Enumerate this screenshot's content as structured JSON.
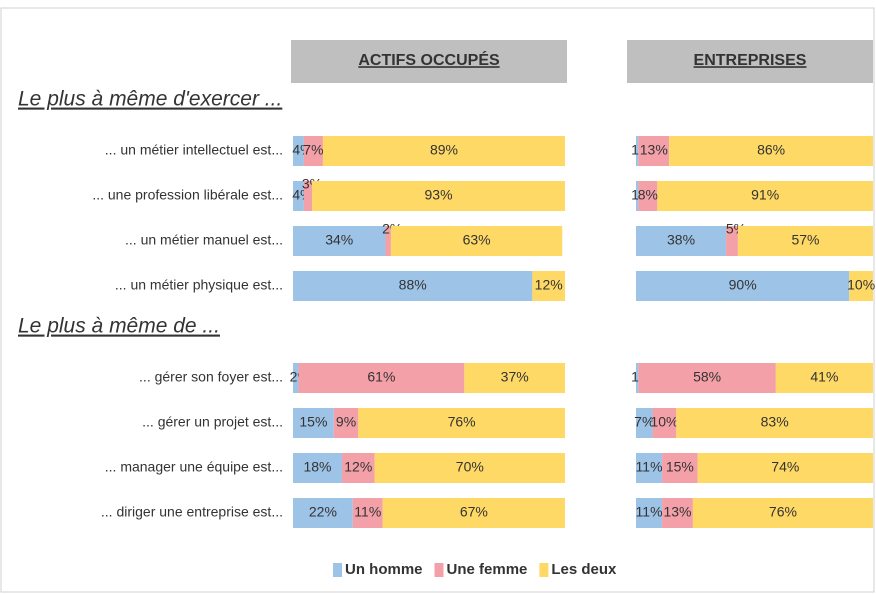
{
  "chart_data": [
    {
      "type": "bar",
      "orientation": "horizontal",
      "stacked": true,
      "title": "ACTIFS OCCUPÉS",
      "xlim": [
        0,
        100
      ],
      "groups": [
        {
          "label": "Le plus à même d'exercer ...",
          "categories": [
            "... un métier intellectuel est...",
            "... une profession libérale est...",
            "... un métier manuel est...",
            "... un métier physique est..."
          ]
        },
        {
          "label": "Le plus à même de ...",
          "categories": [
            "... gérer son foyer est...",
            "... gérer un projet est...",
            "... manager une équipe est...",
            "... diriger une entreprise est..."
          ]
        }
      ],
      "series": [
        {
          "name": "Un homme",
          "color": "#9dc3e6",
          "values": [
            4,
            4,
            34,
            88,
            2,
            15,
            18,
            22
          ],
          "value_labels": [
            "4%",
            "4%",
            "34%",
            "88%",
            "2%",
            "15%",
            "18%",
            "22%"
          ]
        },
        {
          "name": "Une femme",
          "color": "#f4a0a8",
          "values": [
            7,
            3,
            2,
            null,
            61,
            9,
            12,
            11
          ],
          "value_labels": [
            "7%",
            "3%",
            "2%",
            null,
            "61%",
            "9%",
            "12%",
            "11%"
          ]
        },
        {
          "name": "Les deux",
          "color": "#ffd966",
          "values": [
            89,
            93,
            63,
            12,
            37,
            76,
            70,
            67
          ],
          "value_labels": [
            "89%",
            "93%",
            "63%",
            "12%",
            "37%",
            "76%",
            "70%",
            "67%"
          ]
        }
      ]
    },
    {
      "type": "bar",
      "orientation": "horizontal",
      "stacked": true,
      "title": "ENTREPRISES",
      "xlim": [
        0,
        100
      ],
      "series": [
        {
          "color": "#9dc3e6",
          "values": [
            1,
            1,
            38,
            90,
            1,
            7,
            11,
            11
          ],
          "value_labels": [
            "1%",
            "1%",
            "38%",
            "90%",
            "1%",
            "7%",
            "11%",
            "11%"
          ]
        },
        {
          "color": "#f4a0a8",
          "values": [
            13,
            8,
            5,
            null,
            58,
            10,
            15,
            13
          ],
          "value_labels": [
            "13%",
            "8%",
            "5%",
            null,
            "58%",
            "10%",
            "15%",
            "13%"
          ]
        },
        {
          "color": "#ffd966",
          "values": [
            86,
            91,
            57,
            10,
            41,
            83,
            74,
            76
          ],
          "value_labels": [
            "86%",
            "91%",
            "57%",
            "10%",
            "41%",
            "83%",
            "74%",
            "76%"
          ]
        }
      ]
    }
  ]
}
